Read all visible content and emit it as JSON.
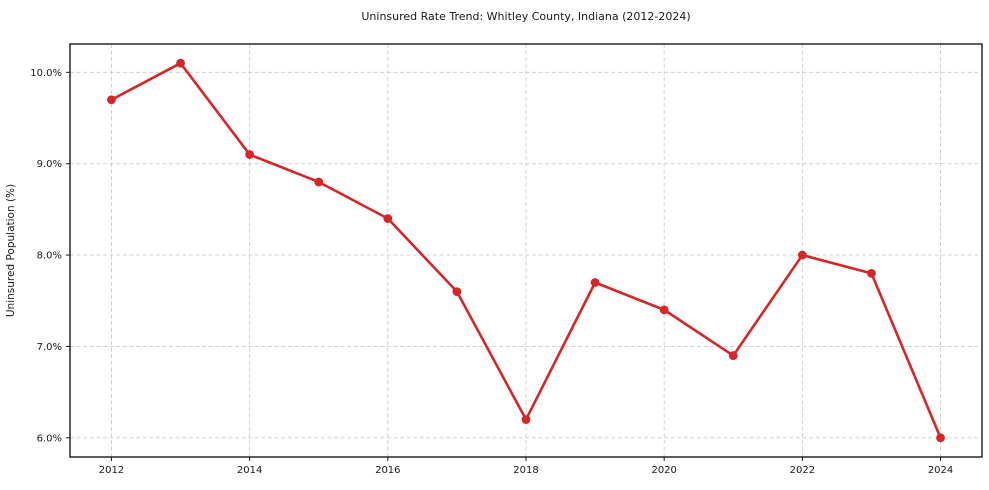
{
  "chart_data": {
    "type": "line",
    "title": "Uninsured Rate Trend: Whitley County, Indiana (2012-2024)",
    "xlabel": "",
    "ylabel": "Uninsured Population (%)",
    "x": [
      2012,
      2013,
      2014,
      2015,
      2016,
      2017,
      2018,
      2019,
      2020,
      2021,
      2022,
      2023,
      2024
    ],
    "values": [
      9.7,
      10.1,
      9.1,
      8.8,
      8.4,
      7.6,
      6.2,
      7.7,
      7.4,
      6.9,
      8.0,
      7.8,
      6.0
    ],
    "xlim": [
      2011.4,
      2024.6
    ],
    "ylim": [
      5.79,
      10.31
    ],
    "xticks": [
      2012,
      2014,
      2016,
      2018,
      2020,
      2022,
      2024
    ],
    "xtick_labels": [
      "2012",
      "2014",
      "2016",
      "2018",
      "2020",
      "2022",
      "2024"
    ],
    "yticks": [
      6.0,
      7.0,
      8.0,
      9.0,
      10.0
    ],
    "ytick_labels": [
      "6.0%",
      "7.0%",
      "8.0%",
      "9.0%",
      "10.0%"
    ],
    "grid": true,
    "legend": false,
    "line_color": "#d62728",
    "marker": "circle",
    "grid_color": "#cccccc",
    "frame_color": "#1a1a1a",
    "background": "#ffffff"
  }
}
